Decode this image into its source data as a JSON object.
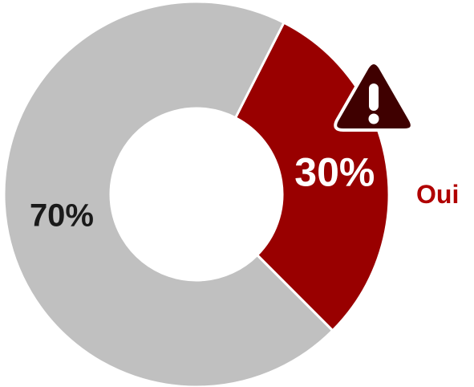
{
  "chart_data": {
    "type": "pie",
    "variant": "donut",
    "title": "",
    "slices": [
      {
        "name": "Oui",
        "value": 30,
        "label": "30%",
        "color": "#990000",
        "label_color": "#ffffff"
      },
      {
        "name": "",
        "value": 70,
        "label": "70%",
        "color": "#c0c0c0",
        "label_color": "#1a1a1a"
      }
    ],
    "legend": {
      "entries": [
        {
          "text": "Oui",
          "color": "#b00000"
        }
      ],
      "placement": "right"
    },
    "annotations": [
      {
        "icon": "warning-icon",
        "color": "#3f0000",
        "attached_to": "Oui"
      }
    ],
    "start_angle_deg": 27
  }
}
